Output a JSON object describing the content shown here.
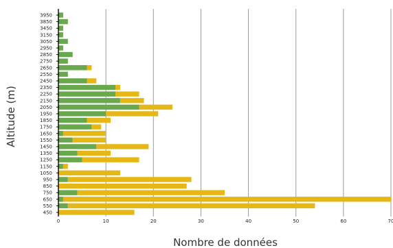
{
  "chart_data": {
    "type": "bar",
    "orientation": "horizontal",
    "stacked": true,
    "title": "",
    "xlabel": "Nombre de données",
    "ylabel": "Altitude (m)",
    "xlim": [
      0,
      70
    ],
    "x_ticks": [
      "0",
      "10",
      "20",
      "30",
      "40",
      "50",
      "60",
      "70"
    ],
    "grid": "vertical",
    "legend": "none",
    "categories": [
      "450",
      "550",
      "650",
      "750",
      "850",
      "950",
      "1050",
      "1150",
      "1250",
      "1350",
      "1450",
      "1550",
      "1650",
      "1750",
      "1850",
      "1950",
      "2050",
      "2150",
      "2250",
      "2350",
      "2450",
      "2550",
      "2650",
      "2750",
      "2850",
      "2950",
      "3050",
      "3150",
      "3450",
      "3850",
      "3950"
    ],
    "series": [
      {
        "color": "#6aa84f",
        "values": [
          0,
          2,
          1,
          4,
          0,
          2,
          0,
          1,
          5,
          4,
          8,
          3,
          1,
          7,
          6,
          10,
          17,
          13,
          12,
          12,
          6,
          2,
          6,
          2,
          3,
          1,
          2,
          1,
          1,
          2,
          1
        ]
      },
      {
        "color": "#e6b817",
        "values": [
          16,
          52,
          69,
          31,
          27,
          26,
          13,
          1,
          12,
          7,
          11,
          7,
          9,
          2,
          5,
          11,
          7,
          5,
          5,
          1,
          2,
          0,
          1,
          0,
          0,
          0,
          0,
          0,
          0,
          0,
          0
        ]
      }
    ]
  }
}
